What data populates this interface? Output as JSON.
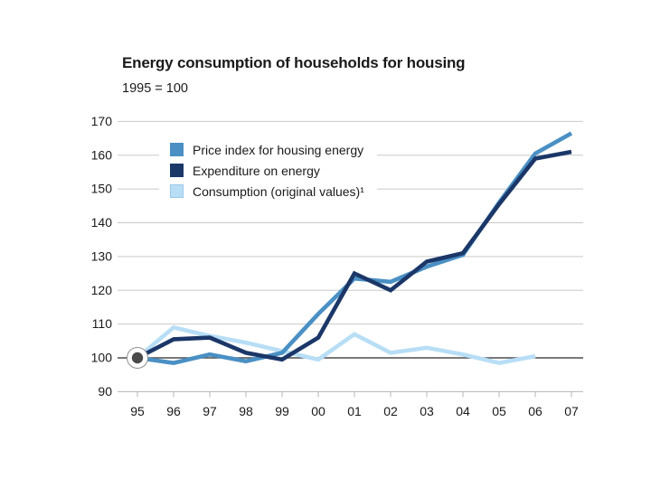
{
  "title": "Energy consumption of households for housing",
  "subtitle": "1995 = 100",
  "chart_data": {
    "type": "line",
    "title": "Energy consumption of households for housing",
    "subtitle": "1995 = 100",
    "categories": [
      "95",
      "96",
      "97",
      "98",
      "99",
      "00",
      "01",
      "02",
      "03",
      "04",
      "05",
      "06",
      "07"
    ],
    "y_ticks": [
      90,
      100,
      110,
      120,
      130,
      140,
      150,
      160,
      170
    ],
    "ylim": [
      90,
      170
    ],
    "baseline_value": 100,
    "grid": "horizontal",
    "legend_position": "top-left-inside",
    "grid_color": "#c9c9c9",
    "baseline_color": "#4d4d4d",
    "axis_color": "#b5b5b5",
    "text_color": "#1a1a1a",
    "series": [
      {
        "name": "Price index for housing energy",
        "color": "#4a90c4",
        "values": [
          100,
          98.5,
          101,
          99,
          101.5,
          113,
          123.5,
          122.5,
          127,
          130.5,
          146,
          160.5,
          166.5
        ]
      },
      {
        "name": "Expenditure on energy",
        "color": "#1b3768",
        "values": [
          100,
          105.5,
          106,
          101.5,
          99.5,
          106,
          125,
          120,
          128.5,
          131,
          145.5,
          159,
          161
        ]
      },
      {
        "name": "Consumption (original values)¹",
        "color": "#b8def6",
        "values": [
          100,
          109,
          106.5,
          104.5,
          102,
          99.5,
          107,
          101.5,
          103,
          101,
          98.5,
          100.5
        ]
      }
    ],
    "start_marker": {
      "category": "95",
      "value": 100,
      "dot_color": "#4a4a4a",
      "ring_color": "#8f8f8f"
    }
  }
}
